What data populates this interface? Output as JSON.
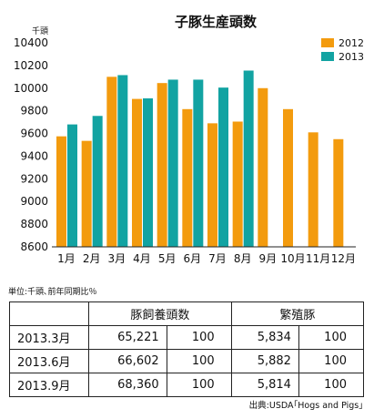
{
  "chart_data": {
    "type": "bar",
    "title": "子豚生産頭数",
    "y_unit": "千頭",
    "categories": [
      "1月",
      "2月",
      "3月",
      "4月",
      "5月",
      "6月",
      "7月",
      "8月",
      "9月",
      "10月",
      "11月",
      "12月"
    ],
    "series": [
      {
        "name": "2012",
        "color": "#F39B0E",
        "values": [
          9575,
          9535,
          10100,
          9905,
          10045,
          9815,
          9690,
          9705,
          10000,
          9815,
          9610,
          9550
        ]
      },
      {
        "name": "2013",
        "color": "#12A3A2",
        "values": [
          9680,
          9755,
          10115,
          9910,
          10075,
          10075,
          10005,
          10155,
          null,
          null,
          null,
          null
        ]
      }
    ],
    "ylim": [
      8600,
      10400
    ],
    "yticks": [
      8600,
      8800,
      9000,
      9200,
      9400,
      9600,
      9800,
      10000,
      10200,
      10400
    ],
    "legend_position": "top-right",
    "grid": false
  },
  "table": {
    "unit_note": "単位:千頭､前年同期比％",
    "headers": [
      "",
      "豚飼養頭数",
      "繁殖豚"
    ],
    "rows": [
      {
        "period": "2013.3月",
        "pigs": "65,221",
        "pigs_ratio": "100",
        "breeding": "5,834",
        "breeding_ratio": "100"
      },
      {
        "period": "2013.6月",
        "pigs": "66,602",
        "pigs_ratio": "100",
        "breeding": "5,882",
        "breeding_ratio": "100"
      },
      {
        "period": "2013.9月",
        "pigs": "68,360",
        "pigs_ratio": "100",
        "breeding": "5,814",
        "breeding_ratio": "100"
      }
    ]
  },
  "source": "出典:USDA｢Hogs and Pigs｣"
}
